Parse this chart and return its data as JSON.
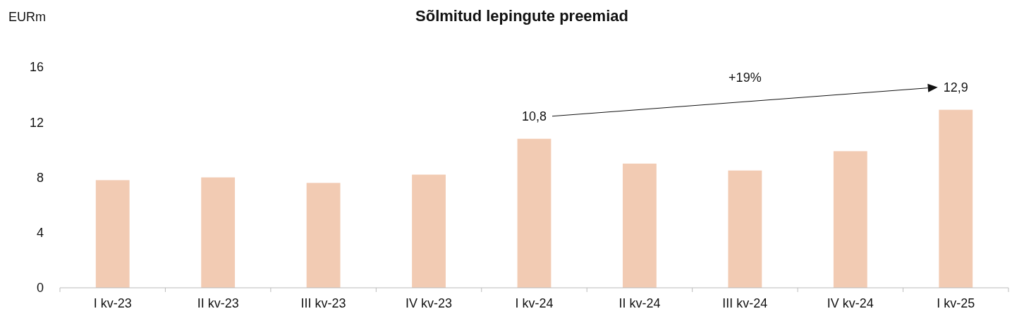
{
  "chart_data": {
    "type": "bar",
    "title": "Sõlmitud lepingute preemiad",
    "ylabel": "EURm",
    "categories": [
      "I kv-23",
      "II kv-23",
      "III kv-23",
      "IV kv-23",
      "I kv-24",
      "II kv-24",
      "III kv-24",
      "IV kv-24",
      "I kv-25"
    ],
    "values": [
      7.8,
      8.0,
      7.6,
      8.2,
      10.8,
      9.0,
      8.5,
      9.9,
      12.9
    ],
    "value_labels": [
      null,
      null,
      null,
      null,
      "10,8",
      null,
      null,
      null,
      "12,9"
    ],
    "color": "#f2cbb3",
    "ylim": [
      0,
      16
    ],
    "yticks": [
      0,
      4,
      8,
      12,
      16
    ],
    "annotations": [
      "+19%"
    ]
  }
}
